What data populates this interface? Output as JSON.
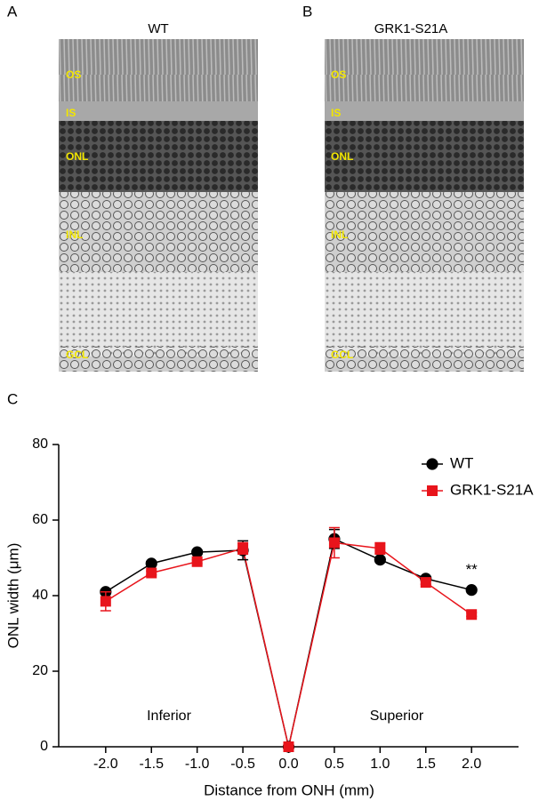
{
  "panels": [
    {
      "label": "A",
      "title": "WT",
      "layers": [
        "OS",
        "IS",
        "ONL",
        "INL",
        "GCL"
      ]
    },
    {
      "label": "B",
      "title": "GRK1-S21A",
      "layers": [
        "OS",
        "IS",
        "ONL",
        "INL",
        "GCL"
      ]
    }
  ],
  "chart_data": {
    "type": "line",
    "panel_label": "C",
    "x_label": "Distance from ONH (mm)",
    "y_label": "ONL width (μm)",
    "x": [
      -2,
      -1.5,
      -1,
      -0.5,
      0,
      0.5,
      1,
      1.5,
      2
    ],
    "series": [
      {
        "name": "WT",
        "color": "#000000",
        "marker": "circle",
        "values": [
          41,
          48.5,
          51.5,
          52,
          0,
          55,
          49.5,
          44.5,
          41.5
        ],
        "errors": [
          0.5,
          0.5,
          0.5,
          2.5,
          0.5,
          2.5,
          0.5,
          0.5,
          0.5
        ]
      },
      {
        "name": "GRK1-S21A",
        "color": "#e8141b",
        "marker": "square",
        "values": [
          38.5,
          46,
          49,
          52.5,
          0,
          54,
          52.5,
          43.5,
          35
        ],
        "errors": [
          2.5,
          0.5,
          0.5,
          1.5,
          0.5,
          4,
          1.5,
          0.5,
          0.5
        ]
      }
    ],
    "annotations": [
      "Inferior",
      "Superior",
      "**"
    ],
    "xlim": [
      -2.5,
      2.5
    ],
    "ylim": [
      0,
      80
    ],
    "xticks": [
      {
        "value": -2,
        "label": "-2.0"
      },
      {
        "value": -1.5,
        "label": "-1.5"
      },
      {
        "value": -1,
        "label": "-1.0"
      },
      {
        "value": -0.5,
        "label": "-0.5"
      },
      {
        "value": 0,
        "label": "0.0"
      },
      {
        "value": 0.5,
        "label": "0.5"
      },
      {
        "value": 1,
        "label": "1.0"
      },
      {
        "value": 1.5,
        "label": "1.5"
      },
      {
        "value": 2,
        "label": "2.0"
      }
    ],
    "yticks": [
      0,
      20,
      40,
      60,
      80
    ],
    "legend": "upper right",
    "grid": false
  }
}
